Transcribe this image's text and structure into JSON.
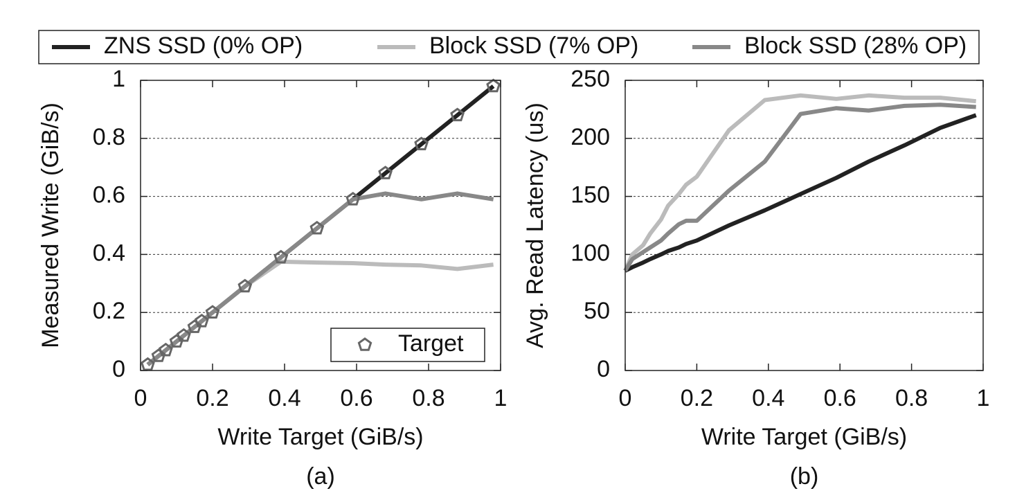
{
  "chart_data": [
    {
      "type": "line",
      "caption": "(a)",
      "xlabel": "Write Target (GiB/s)",
      "ylabel": "Measured Write (GiB/s)",
      "x": [
        0.02,
        0.05,
        0.07,
        0.1,
        0.12,
        0.15,
        0.17,
        0.2,
        0.29,
        0.39,
        0.49,
        0.59,
        0.68,
        0.78,
        0.88,
        0.98
      ],
      "series": [
        {
          "name": "ZNS SSD (0% OP)",
          "color": "#222222",
          "style": "line",
          "values": [
            0.02,
            0.05,
            0.07,
            0.1,
            0.12,
            0.15,
            0.17,
            0.2,
            0.29,
            0.39,
            0.49,
            0.59,
            0.68,
            0.78,
            0.88,
            0.98
          ]
        },
        {
          "name": "Block SSD (7% OP)",
          "color": "#bbbbbb",
          "style": "line",
          "values": [
            0.02,
            0.05,
            0.07,
            0.1,
            0.12,
            0.15,
            0.17,
            0.2,
            0.29,
            0.375,
            0.372,
            0.37,
            0.365,
            0.362,
            0.35,
            0.365
          ]
        },
        {
          "name": "Block SSD (28% OP)",
          "color": "#888888",
          "style": "line",
          "values": [
            0.02,
            0.05,
            0.07,
            0.1,
            0.12,
            0.15,
            0.17,
            0.2,
            0.29,
            0.39,
            0.49,
            0.59,
            0.61,
            0.59,
            0.61,
            0.59
          ]
        },
        {
          "name": "Target",
          "color": "#666666",
          "style": "markers",
          "values": [
            0.02,
            0.05,
            0.07,
            0.1,
            0.12,
            0.15,
            0.17,
            0.2,
            0.29,
            0.39,
            0.49,
            0.59,
            0.68,
            0.78,
            0.88,
            0.98
          ]
        }
      ],
      "xlim": [
        0,
        1
      ],
      "xticks": [
        0,
        0.2,
        0.4,
        0.6,
        0.8,
        1
      ],
      "ylim": [
        0,
        1
      ],
      "yticks": [
        0,
        0.2,
        0.4,
        0.6,
        0.8,
        1
      ],
      "grid": true,
      "legend_position": "lower right"
    },
    {
      "type": "line",
      "caption": "(b)",
      "xlabel": "Write Target (GiB/s)",
      "ylabel": "Avg. Read Latency (us)",
      "x": [
        0,
        0.02,
        0.05,
        0.07,
        0.1,
        0.12,
        0.15,
        0.17,
        0.2,
        0.29,
        0.39,
        0.49,
        0.59,
        0.68,
        0.78,
        0.88,
        0.98
      ],
      "series": [
        {
          "color": "#222222",
          "style": "line",
          "values": [
            86,
            89,
            93,
            96,
            100,
            103,
            106,
            109,
            112,
            125,
            138,
            152,
            166,
            180,
            194,
            209,
            220
          ]
        },
        {
          "color": "#bbbbbb",
          "style": "line",
          "values": [
            86,
            100,
            108,
            118,
            130,
            142,
            152,
            160,
            167,
            207,
            233,
            237,
            234,
            237,
            235,
            235,
            232
          ]
        },
        {
          "color": "#888888",
          "style": "line",
          "values": [
            86,
            96,
            102,
            106,
            112,
            118,
            126,
            129,
            129,
            155,
            180,
            221,
            226,
            224,
            228,
            229,
            227
          ]
        }
      ],
      "xlim": [
        0,
        1
      ],
      "xticks": [
        0,
        0.2,
        0.4,
        0.6,
        0.8,
        1
      ],
      "ylim": [
        0,
        250
      ],
      "yticks": [
        0,
        50,
        100,
        150,
        200,
        250
      ],
      "grid": true
    }
  ]
}
